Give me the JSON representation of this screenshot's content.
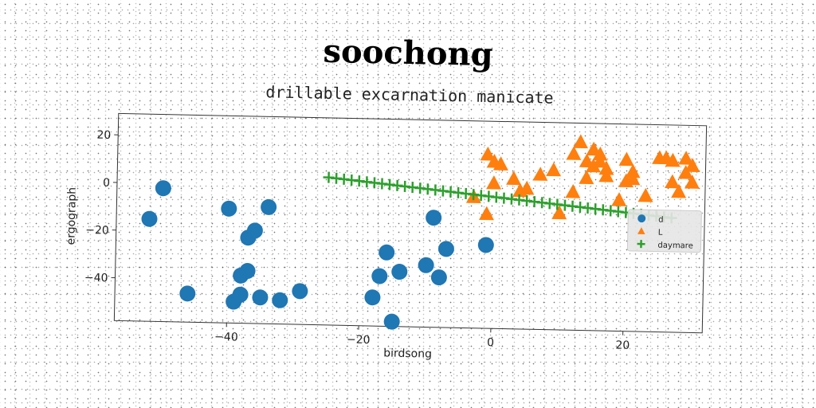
{
  "chart_data": {
    "type": "scatter",
    "title": "soochong",
    "subtitle": "drillable excarnation manicate",
    "xlabel": "birdsong",
    "ylabel": "ergograph",
    "xlim": [
      -57,
      32
    ],
    "ylim": [
      -58,
      29
    ],
    "xticks": [
      -40,
      -20,
      0,
      20
    ],
    "yticks": [
      20,
      0,
      -20,
      -40
    ],
    "xtick_labels": [
      "−40",
      "−20",
      "0",
      "20"
    ],
    "ytick_labels": [
      "20",
      "0",
      "−20",
      "−40"
    ],
    "legend_position": "right",
    "series": [
      {
        "name": "d",
        "marker": "circle",
        "color": "#1f77b4",
        "points": [
          [
            -52,
            -15
          ],
          [
            -50,
            -2
          ],
          [
            -46,
            -46
          ],
          [
            -40,
            -10
          ],
          [
            -39,
            -49
          ],
          [
            -38,
            -46
          ],
          [
            -38,
            -38
          ],
          [
            -37,
            -36
          ],
          [
            -37,
            -22
          ],
          [
            -36,
            -19
          ],
          [
            -34,
            -9
          ],
          [
            -35,
            -47
          ],
          [
            -32,
            -48
          ],
          [
            -29,
            -44
          ],
          [
            -18,
            -46
          ],
          [
            -17,
            -37
          ],
          [
            -16,
            -27
          ],
          [
            -15,
            -56
          ],
          [
            -14,
            -35
          ],
          [
            -10,
            -32
          ],
          [
            -9,
            -12
          ],
          [
            -8,
            -37
          ],
          [
            -7,
            -25
          ],
          [
            -1,
            -23
          ]
        ]
      },
      {
        "name": "L",
        "marker": "triangle",
        "color": "#ff7f0e",
        "points": [
          [
            -3,
            -3
          ],
          [
            -1,
            15
          ],
          [
            -1,
            -10
          ],
          [
            0,
            12
          ],
          [
            0,
            3
          ],
          [
            1,
            11
          ],
          [
            3,
            5
          ],
          [
            4,
            0
          ],
          [
            5,
            1
          ],
          [
            7,
            7
          ],
          [
            9,
            9
          ],
          [
            10,
            -9
          ],
          [
            12,
            16
          ],
          [
            12,
            0
          ],
          [
            13,
            21
          ],
          [
            14,
            13
          ],
          [
            14,
            6
          ],
          [
            15,
            18
          ],
          [
            15,
            11
          ],
          [
            16,
            16
          ],
          [
            16,
            13
          ],
          [
            17,
            10
          ],
          [
            17,
            7
          ],
          [
            19,
            -3
          ],
          [
            20,
            14
          ],
          [
            20,
            5
          ],
          [
            21,
            9
          ],
          [
            21,
            6
          ],
          [
            23,
            -1
          ],
          [
            25,
            15
          ],
          [
            26,
            15
          ],
          [
            27,
            14
          ],
          [
            27,
            5
          ],
          [
            28,
            1
          ],
          [
            29,
            9
          ],
          [
            29,
            15
          ],
          [
            30,
            12
          ],
          [
            30,
            5
          ]
        ]
      },
      {
        "name": "daymare",
        "marker": "plus",
        "color": "#2ca02c",
        "line": {
          "x_start": -25,
          "x_end": 27,
          "y_start": 4,
          "y_end": -10,
          "count": 46
        }
      }
    ]
  }
}
